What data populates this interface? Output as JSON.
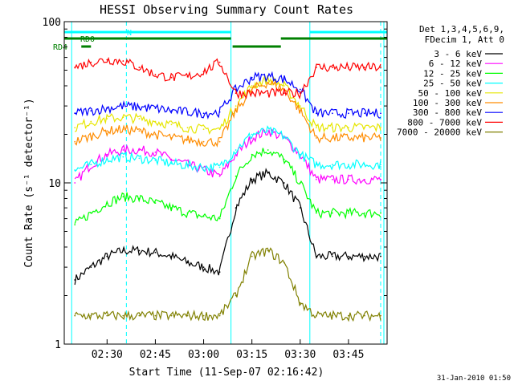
{
  "chart_data": {
    "type": "line",
    "title": "HESSI Observing Summary Count Rates",
    "xlabel": "Start Time (11-Sep-07 02:16:42)",
    "ylabel": "Count Rate (s⁻¹ detector⁻¹)",
    "y_scale": "log",
    "ylim": [
      1,
      100
    ],
    "xlim": [
      "02:16:42",
      "03:57:00"
    ],
    "x_ticks": [
      "02:30",
      "02:45",
      "03:00",
      "03:15",
      "03:30",
      "03:45"
    ],
    "y_ticks": [
      "1",
      "10",
      "100"
    ],
    "footer": "31-Jan-2010 01:50",
    "legend": {
      "placement": "right",
      "header": [
        "Det 1,3,4,5,6,9,",
        "FDecim 1, Att 0"
      ]
    },
    "flags": [
      {
        "label": "N",
        "color": "#00ffff",
        "segments": [
          [
            "02:16:42",
            "03:08:30"
          ],
          [
            "03:33:00",
            "03:57:00"
          ]
        ]
      },
      {
        "label": "RD0",
        "color": "#008000",
        "segments": [
          [
            "02:16:42",
            "03:08:30"
          ],
          [
            "03:24:00",
            "03:57:00"
          ]
        ]
      },
      {
        "label": "RD4",
        "color": "#008000",
        "segments": [
          [
            "02:22:00",
            "02:25:00"
          ],
          [
            "03:09:00",
            "03:24:00"
          ]
        ]
      }
    ],
    "markers": {
      "solid": [
        "02:19:00",
        "03:08:30",
        "03:33:00",
        "03:56:00"
      ],
      "dashed": [
        "02:36:00",
        "03:55:00"
      ]
    },
    "x": [
      "02:20",
      "02:25",
      "02:30",
      "02:35",
      "02:40",
      "02:45",
      "02:50",
      "02:55",
      "03:00",
      "03:05",
      "03:10",
      "03:15",
      "03:20",
      "03:25",
      "03:30",
      "03:35",
      "03:40",
      "03:45",
      "03:50",
      "03:55"
    ],
    "series": [
      {
        "name": "3 - 6 keV",
        "color": "#000000",
        "values": [
          2.5,
          3.0,
          3.5,
          3.8,
          3.8,
          3.7,
          3.5,
          3.2,
          3.0,
          2.8,
          7.0,
          10.5,
          11.5,
          10.0,
          7.0,
          3.5,
          3.5,
          3.5,
          3.5,
          3.5
        ]
      },
      {
        "name": "6 - 12 keV",
        "color": "#ff00ff",
        "values": [
          10.0,
          13.0,
          15.0,
          16.0,
          16.0,
          15.5,
          14.0,
          13.0,
          12.0,
          11.0,
          15.0,
          19.0,
          21.0,
          19.0,
          15.0,
          10.5,
          10.5,
          10.5,
          10.5,
          10.5
        ]
      },
      {
        "name": "12 - 25 keV",
        "color": "#00ff00",
        "values": [
          5.5,
          6.5,
          7.5,
          8.2,
          8.0,
          7.5,
          7.0,
          6.5,
          6.2,
          6.0,
          11.0,
          15.0,
          16.0,
          14.0,
          10.0,
          6.5,
          6.5,
          6.5,
          6.5,
          6.5
        ]
      },
      {
        "name": "25 - 50 keV",
        "color": "#00ffff",
        "values": [
          12.0,
          13.0,
          14.0,
          14.5,
          14.2,
          13.8,
          13.2,
          12.8,
          12.5,
          12.5,
          16.0,
          20.0,
          21.0,
          19.5,
          15.0,
          13.0,
          13.0,
          13.0,
          13.0,
          13.0
        ]
      },
      {
        "name": "50 - 100 keV",
        "color": "#e6e600",
        "values": [
          22.0,
          24.0,
          25.0,
          25.5,
          25.0,
          24.0,
          23.0,
          22.0,
          21.5,
          21.5,
          30.0,
          40.0,
          44.0,
          40.0,
          30.0,
          22.0,
          22.0,
          22.0,
          22.0,
          22.0
        ]
      },
      {
        "name": "100 - 300 keV",
        "color": "#ff8c00",
        "values": [
          18.0,
          19.5,
          21.0,
          21.5,
          21.0,
          20.0,
          19.0,
          18.5,
          18.0,
          18.0,
          28.0,
          38.0,
          42.0,
          38.0,
          28.0,
          19.0,
          19.0,
          19.0,
          19.0,
          19.0
        ]
      },
      {
        "name": "300 - 800 keV",
        "color": "#0000ff",
        "values": [
          27.0,
          28.0,
          29.0,
          30.0,
          29.5,
          29.0,
          28.0,
          27.5,
          27.0,
          27.5,
          38.0,
          45.0,
          46.0,
          44.0,
          38.0,
          27.0,
          27.0,
          27.0,
          27.0,
          27.0
        ]
      },
      {
        "name": "800 - 7000 keV",
        "color": "#ff0000",
        "values": [
          52.0,
          56.0,
          58.0,
          57.0,
          52.0,
          47.0,
          45.0,
          45.5,
          49.0,
          56.0,
          36.0,
          36.0,
          36.0,
          36.0,
          36.0,
          52.0,
          52.0,
          52.0,
          52.0,
          52.0
        ]
      },
      {
        "name": "7000 - 20000 keV",
        "color": "#808000",
        "values": [
          1.5,
          1.5,
          1.5,
          1.5,
          1.5,
          1.5,
          1.5,
          1.5,
          1.5,
          1.5,
          2.0,
          3.5,
          3.8,
          3.2,
          1.8,
          1.5,
          1.5,
          1.5,
          1.5,
          1.5
        ]
      }
    ]
  }
}
